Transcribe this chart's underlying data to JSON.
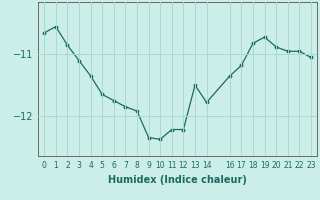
{
  "x": [
    0,
    1,
    2,
    3,
    4,
    5,
    6,
    7,
    8,
    9,
    10,
    11,
    12,
    13,
    14,
    16,
    17,
    18,
    19,
    20,
    21,
    22,
    23
  ],
  "y": [
    -10.65,
    -10.55,
    -10.85,
    -11.1,
    -11.35,
    -11.65,
    -11.75,
    -11.85,
    -11.92,
    -12.35,
    -12.38,
    -12.22,
    -12.22,
    -11.5,
    -11.78,
    -11.35,
    -11.18,
    -10.82,
    -10.72,
    -10.88,
    -10.95,
    -10.95,
    -11.05
  ],
  "xlabel": "Humidex (Indice chaleur)",
  "bg_color": "#cceee8",
  "line_color": "#1a6b60",
  "grid_color": "#aad8d0",
  "ylim": [
    -12.65,
    -10.15
  ],
  "yticks": [
    -12,
    -11
  ],
  "xlim": [
    -0.5,
    23.5
  ],
  "xticks": [
    0,
    1,
    2,
    3,
    4,
    5,
    6,
    7,
    8,
    9,
    10,
    11,
    12,
    13,
    14,
    16,
    17,
    18,
    19,
    20,
    21,
    22,
    23
  ],
  "xlabel_fontsize": 7,
  "ytick_fontsize": 7,
  "xtick_fontsize": 5.5
}
